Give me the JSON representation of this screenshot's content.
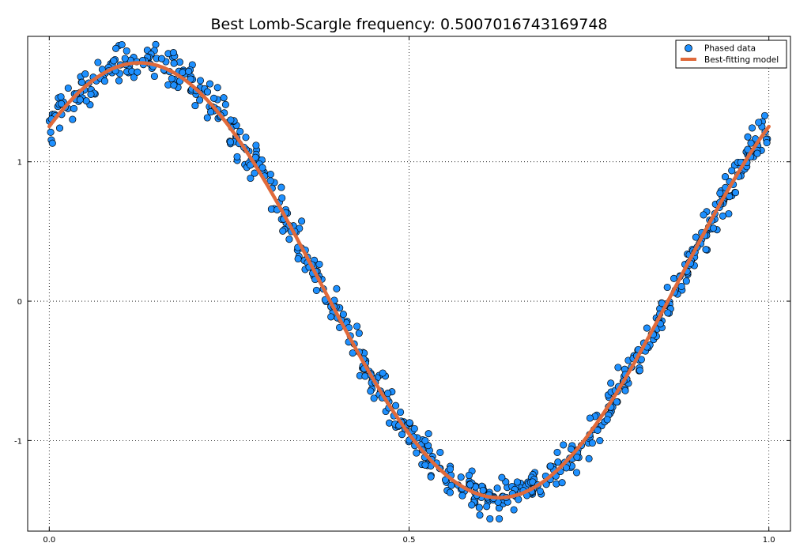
{
  "chart_data": {
    "type": "scatter",
    "title": "Best Lomb-Scargle frequency: 0.5007016743169748",
    "xlabel": "",
    "ylabel": "",
    "xlim": [
      -0.03,
      1.03
    ],
    "ylim": [
      -1.65,
      1.9
    ],
    "xticks": [
      0.0,
      0.5,
      1.0
    ],
    "xtick_labels": [
      "0.0",
      "0.5",
      "1.0"
    ],
    "yticks": [
      -1,
      0,
      1
    ],
    "ytick_labels": [
      "-1",
      "0",
      "1"
    ],
    "grid": true,
    "legend_position": "top-right",
    "scatter_point_count": 700,
    "series": [
      {
        "name": "Phased data",
        "kind": "scatter",
        "color": "#1e90ff",
        "edge_color": "#000000",
        "model": {
          "offset": 0.15,
          "amplitude": 1.56,
          "phase_of_peak": 0.125
        },
        "noise_spread": 0.13
      },
      {
        "name": "Best-fitting model",
        "kind": "line",
        "color": "#e06a3b",
        "model": {
          "offset": 0.15,
          "amplitude": 1.56,
          "phase_of_peak": 0.125
        },
        "x_samples": [
          0.0,
          0.05,
          0.1,
          0.125,
          0.15,
          0.2,
          0.25,
          0.3,
          0.35,
          0.4,
          0.45,
          0.5,
          0.55,
          0.6,
          0.625,
          0.65,
          0.7,
          0.75,
          0.8,
          0.85,
          0.9,
          0.95,
          1.0
        ],
        "y_samples": [
          1.25,
          1.56,
          1.7,
          1.71,
          1.7,
          1.56,
          1.25,
          0.75,
          0.15,
          -0.45,
          -0.95,
          -1.25,
          -1.4,
          -1.41,
          -1.4,
          -1.35,
          -1.1,
          -0.7,
          -0.25,
          0.15,
          0.6,
          1.0,
          1.25
        ]
      }
    ]
  }
}
